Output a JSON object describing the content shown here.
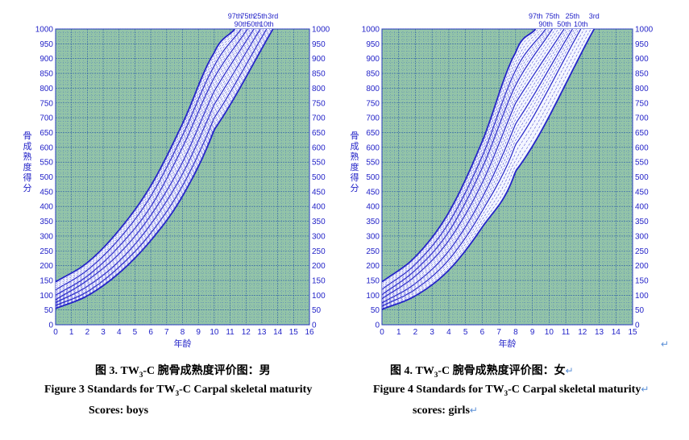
{
  "captions": {
    "boys": {
      "cn_prefix": "图 3. TW",
      "cn_sub": "3",
      "cn_suffix": "-C  腕骨成熟度评价图：男",
      "en_line1_prefix": "Figure 3 Standards for TW",
      "en_line1_sub": "3",
      "en_line1_suffix": "-C Carpal skeletal maturity",
      "en_line2": "Scores: boys"
    },
    "girls": {
      "cn_prefix": "图 4. TW",
      "cn_sub": "3",
      "cn_suffix": "-C  腕骨成熟度评价图：女",
      "en_line1_prefix": "Figure 4 Standards for TW",
      "en_line1_sub": "3",
      "en_line1_suffix": "-C Carpal skeletal maturity",
      "en_line2": "scores: girls",
      "return_mark": "↵"
    }
  },
  "chart_data": [
    {
      "type": "line",
      "xlabel": "年龄",
      "ylabel": "骨成熟度得分",
      "xlim": [
        0,
        16
      ],
      "ylim": [
        0,
        1000
      ],
      "xticks": [
        0,
        1,
        2,
        3,
        4,
        5,
        6,
        7,
        8,
        9,
        10,
        11,
        12,
        13,
        14,
        15,
        16
      ],
      "yticks": [
        0,
        50,
        100,
        150,
        200,
        250,
        300,
        350,
        400,
        450,
        500,
        550,
        600,
        650,
        700,
        750,
        800,
        850,
        900,
        950,
        1000
      ],
      "grid": true,
      "background": "#93c4a8",
      "line_color": "#2323c8",
      "percentile_labels_top": [
        "97th",
        "75th",
        "25th",
        "3rd"
      ],
      "percentile_labels_bottom": [
        "90th",
        "50th",
        "10th"
      ],
      "series": [
        {
          "name": "97th",
          "x": [
            0,
            2,
            4,
            6,
            8,
            10,
            11.3
          ],
          "y": [
            145,
            210,
            320,
            470,
            680,
            920,
            1000
          ]
        },
        {
          "name": "90th",
          "x": [
            0,
            2,
            4,
            6,
            8,
            10,
            11.7
          ],
          "y": [
            118,
            185,
            290,
            435,
            640,
            875,
            1000
          ]
        },
        {
          "name": "75th",
          "x": [
            0,
            2,
            4,
            6,
            8,
            10,
            12.1
          ],
          "y": [
            100,
            165,
            265,
            400,
            600,
            835,
            1000
          ]
        },
        {
          "name": "50th",
          "x": [
            0,
            2,
            4,
            6,
            8,
            10,
            12.5
          ],
          "y": [
            85,
            150,
            240,
            370,
            550,
            790,
            1000
          ]
        },
        {
          "name": "25th",
          "x": [
            0,
            2,
            4,
            6,
            8,
            10,
            12.9
          ],
          "y": [
            75,
            130,
            215,
            340,
            510,
            745,
            1000
          ]
        },
        {
          "name": "10th",
          "x": [
            0,
            2,
            4,
            6,
            8,
            10,
            13.3
          ],
          "y": [
            65,
            112,
            195,
            310,
            470,
            700,
            1000
          ]
        },
        {
          "name": "3rd",
          "x": [
            0,
            2,
            4,
            6,
            8,
            10,
            13.7
          ],
          "y": [
            55,
            98,
            175,
            285,
            435,
            660,
            1000
          ]
        }
      ]
    },
    {
      "type": "line",
      "xlabel": "年龄",
      "ylabel": "骨成熟度得分",
      "xlim": [
        0,
        15
      ],
      "ylim": [
        0,
        1000
      ],
      "xticks": [
        0,
        1,
        2,
        3,
        4,
        5,
        6,
        7,
        8,
        9,
        10,
        11,
        12,
        13,
        14,
        15
      ],
      "yticks": [
        0,
        50,
        100,
        150,
        200,
        250,
        300,
        350,
        400,
        450,
        500,
        550,
        600,
        650,
        700,
        750,
        800,
        850,
        900,
        950,
        1000
      ],
      "grid": true,
      "background": "#93c4a8",
      "line_color": "#2323c8",
      "percentile_labels_top": [
        "97th",
        "75th",
        "25th",
        "3rd"
      ],
      "percentile_labels_bottom": [
        "90th",
        "50th",
        "10th"
      ],
      "series": [
        {
          "name": "97th",
          "x": [
            0,
            2,
            4,
            6,
            8,
            9.2
          ],
          "y": [
            145,
            230,
            380,
            620,
            920,
            1000
          ]
        },
        {
          "name": "90th",
          "x": [
            0,
            2,
            4,
            6,
            8,
            9.8
          ],
          "y": [
            120,
            205,
            345,
            570,
            860,
            1000
          ]
        },
        {
          "name": "75th",
          "x": [
            0,
            2,
            4,
            6,
            8,
            10.2
          ],
          "y": [
            102,
            185,
            315,
            530,
            810,
            1000
          ]
        },
        {
          "name": "50th",
          "x": [
            0,
            2,
            4,
            6,
            8,
            10.9
          ],
          "y": [
            88,
            165,
            285,
            480,
            750,
            1000
          ]
        },
        {
          "name": "25th",
          "x": [
            0,
            2,
            4,
            6,
            8,
            11.4
          ],
          "y": [
            74,
            140,
            250,
            430,
            680,
            1000
          ]
        },
        {
          "name": "10th",
          "x": [
            0,
            2,
            4,
            6,
            8,
            11.9
          ],
          "y": [
            63,
            120,
            220,
            385,
            610,
            1000
          ]
        },
        {
          "name": "3rd",
          "x": [
            0,
            2,
            4,
            6,
            8,
            12.7
          ],
          "y": [
            52,
            98,
            185,
            330,
            520,
            1000
          ]
        }
      ]
    }
  ]
}
